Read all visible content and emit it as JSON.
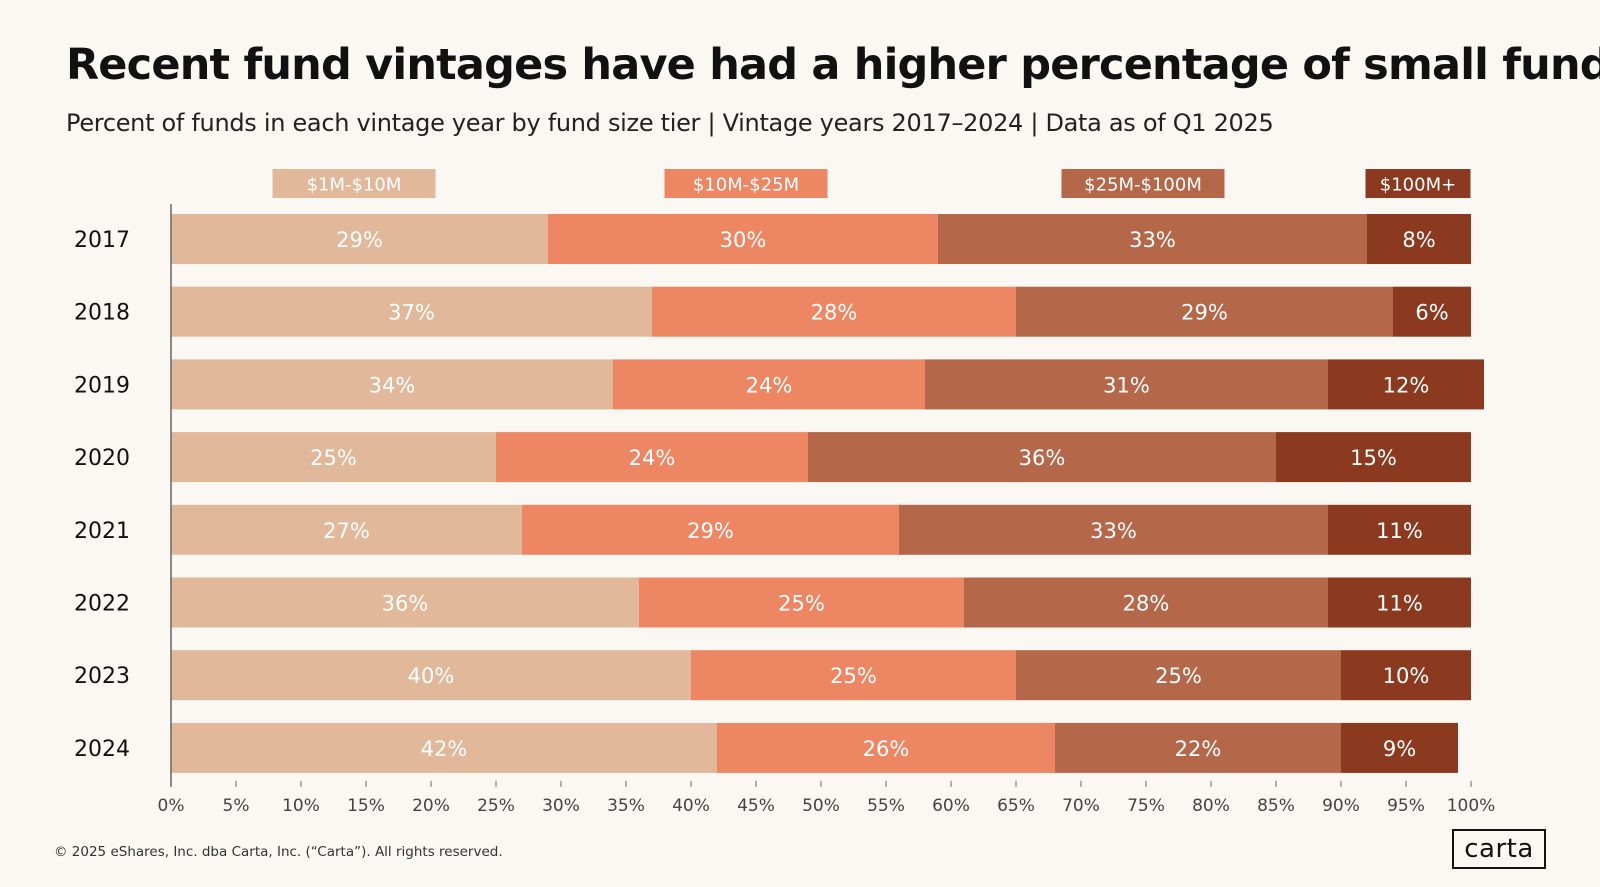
{
  "title": "Recent fund vintages have had a higher percentage of small funds",
  "subtitle": "Percent of funds in each vintage year by fund size tier | Vintage years 2017–2024 | Data as of Q1 2025",
  "footer": "© 2025 eShares, Inc. dba Carta, Inc. (“Carta”). All rights reserved.",
  "logo_text": "carta",
  "colors": {
    "background": "#fbf8f4",
    "series": [
      "#e2b89a",
      "#ed8663",
      "#b5674a",
      "#8b3a20"
    ],
    "axis": "#666666",
    "bar_label": "#ffffff"
  },
  "chart_data": {
    "type": "bar",
    "orientation": "horizontal",
    "stacked": true,
    "categories": [
      "2017",
      "2018",
      "2019",
      "2020",
      "2021",
      "2022",
      "2023",
      "2024"
    ],
    "series": [
      {
        "name": "$1M-$10M",
        "values": [
          29,
          37,
          34,
          25,
          27,
          36,
          40,
          42
        ]
      },
      {
        "name": "$10M-$25M",
        "values": [
          30,
          28,
          24,
          24,
          29,
          25,
          25,
          26
        ]
      },
      {
        "name": "$25M-$100M",
        "values": [
          33,
          29,
          31,
          36,
          33,
          28,
          25,
          22
        ]
      },
      {
        "name": "$100M+",
        "values": [
          8,
          6,
          12,
          15,
          11,
          11,
          10,
          9
        ]
      }
    ],
    "value_suffix": "%",
    "xlim": [
      0,
      100
    ],
    "x_ticks": [
      0,
      5,
      10,
      15,
      20,
      25,
      30,
      35,
      40,
      45,
      50,
      55,
      60,
      65,
      70,
      75,
      80,
      85,
      90,
      95,
      100
    ],
    "x_tick_labels": [
      "0%",
      "5%",
      "10%",
      "15%",
      "20%",
      "25%",
      "30%",
      "35%",
      "40%",
      "45%",
      "50%",
      "55%",
      "60%",
      "65%",
      "70%",
      "75%",
      "80%",
      "85%",
      "90%",
      "95%",
      "100%"
    ],
    "legend_position": "top",
    "grid": false
  }
}
